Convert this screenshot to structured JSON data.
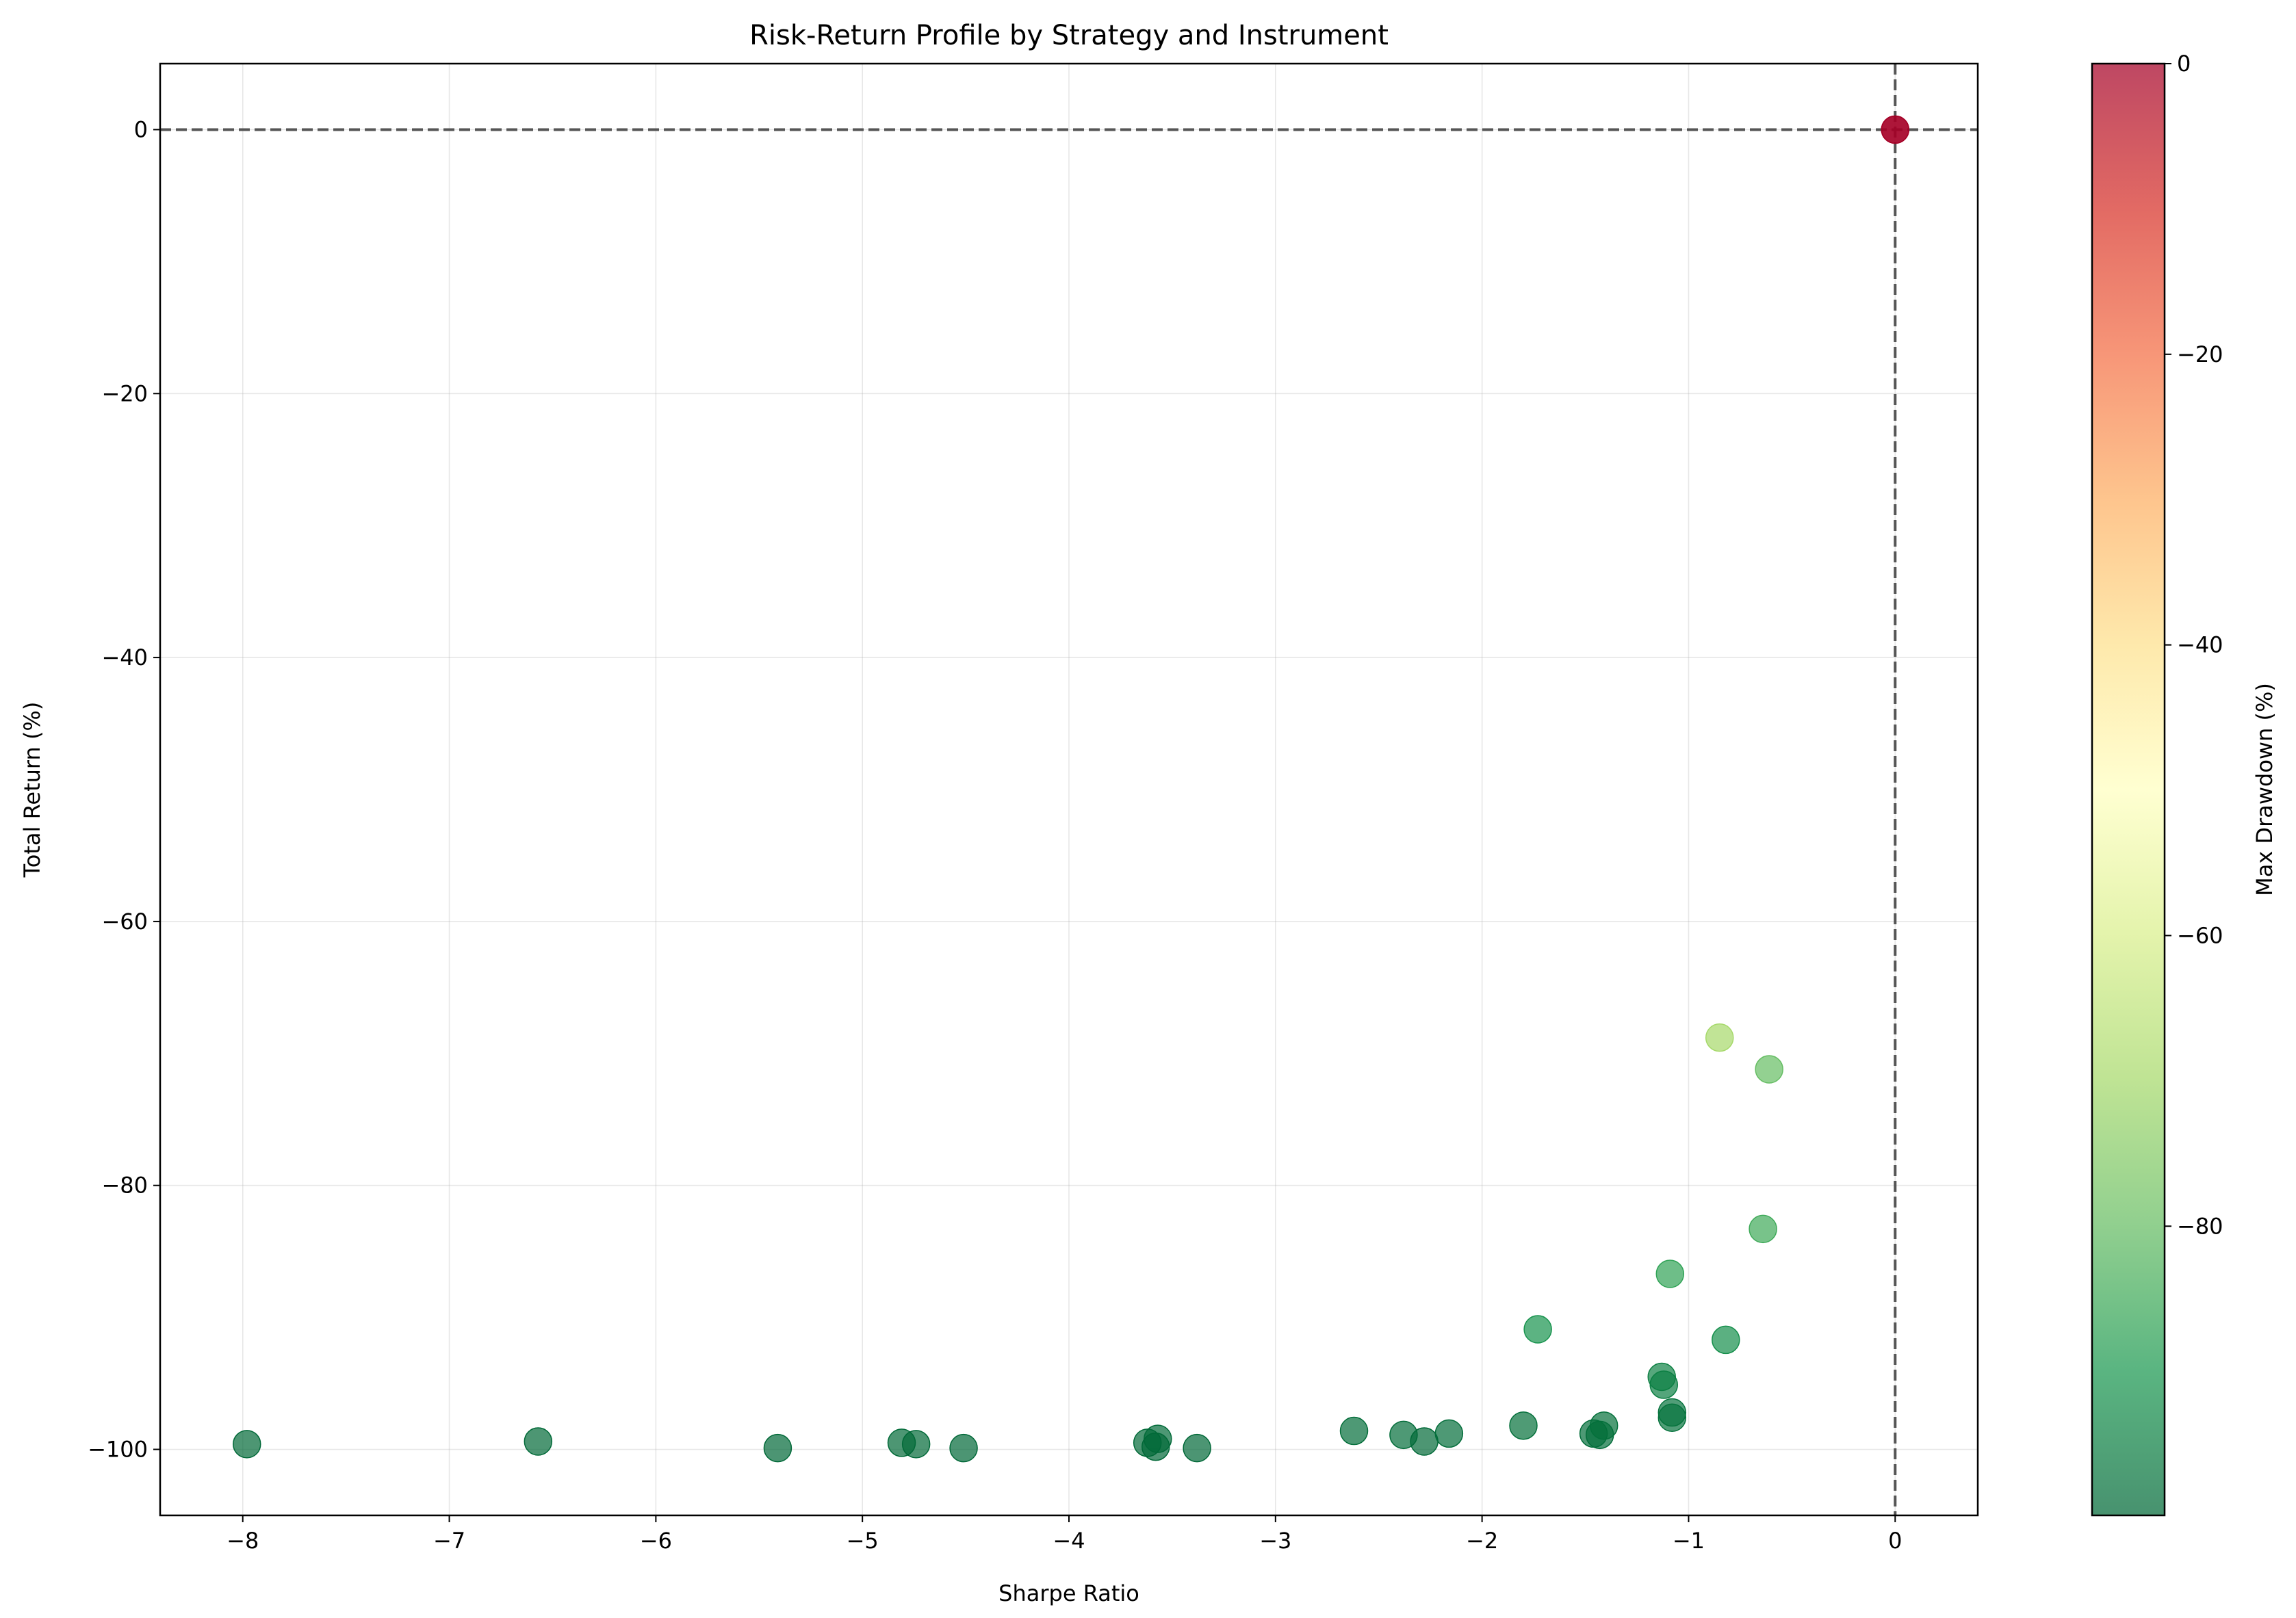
{
  "chart_data": {
    "type": "scatter",
    "title": "Risk-Return Profile by Strategy and Instrument",
    "xlabel": "Sharpe Ratio",
    "ylabel": "Total Return (%)",
    "xlim": [
      -8.4,
      0.4
    ],
    "ylim": [
      -105,
      5
    ],
    "xticks": [
      -8,
      -7,
      -6,
      -5,
      -4,
      -3,
      -2,
      -1,
      0
    ],
    "yticks": [
      0,
      -20,
      -40,
      -60,
      -80,
      -100
    ],
    "grid": true,
    "reference_lines": {
      "x": 0,
      "y": 0,
      "style": "dashed",
      "color": "#555555"
    },
    "colorbar": {
      "label": "Max Drawdown (%)",
      "colormap": "RdYlGn",
      "range": [
        -99.9,
        0
      ],
      "ticks": [
        0,
        -20,
        -40,
        -60,
        -80
      ],
      "stops": [
        "#006837",
        "#1a9850",
        "#66bd63",
        "#a6d96a",
        "#d9ef8b",
        "#ffffbf",
        "#fee08b",
        "#fdae61",
        "#f46d43",
        "#d73027",
        "#a50026"
      ]
    },
    "points": [
      {
        "x": -7.98,
        "y": -99.6,
        "c": -99.6
      },
      {
        "x": -6.57,
        "y": -99.4,
        "c": -99.4
      },
      {
        "x": -5.41,
        "y": -99.9,
        "c": -99.9
      },
      {
        "x": -4.81,
        "y": -99.5,
        "c": -99.5
      },
      {
        "x": -4.74,
        "y": -99.6,
        "c": -99.6
      },
      {
        "x": -4.51,
        "y": -99.9,
        "c": -99.9
      },
      {
        "x": -3.62,
        "y": -99.5,
        "c": -99.5
      },
      {
        "x": -3.57,
        "y": -99.2,
        "c": -99.2
      },
      {
        "x": -3.58,
        "y": -99.8,
        "c": -99.8
      },
      {
        "x": -3.38,
        "y": -99.9,
        "c": -99.9
      },
      {
        "x": -2.62,
        "y": -98.6,
        "c": -98.6
      },
      {
        "x": -2.38,
        "y": -98.9,
        "c": -98.9
      },
      {
        "x": -2.28,
        "y": -99.4,
        "c": -99.4
      },
      {
        "x": -2.16,
        "y": -98.8,
        "c": -98.8
      },
      {
        "x": -1.8,
        "y": -98.2,
        "c": -98.2
      },
      {
        "x": -1.73,
        "y": -90.9,
        "c": -91.0
      },
      {
        "x": -1.46,
        "y": -98.8,
        "c": -98.8
      },
      {
        "x": -1.43,
        "y": -98.9,
        "c": -98.9
      },
      {
        "x": -1.41,
        "y": -98.2,
        "c": -98.2
      },
      {
        "x": -1.13,
        "y": -94.5,
        "c": -94.6
      },
      {
        "x": -1.12,
        "y": -95.1,
        "c": -95.2
      },
      {
        "x": -1.08,
        "y": -97.2,
        "c": -97.3
      },
      {
        "x": -1.08,
        "y": -97.6,
        "c": -97.7
      },
      {
        "x": -1.09,
        "y": -86.7,
        "c": -87.0
      },
      {
        "x": -0.82,
        "y": -91.7,
        "c": -91.8
      },
      {
        "x": -0.85,
        "y": -68.8,
        "c": -70.0
      },
      {
        "x": -0.61,
        "y": -71.2,
        "c": -80.0
      },
      {
        "x": -0.64,
        "y": -83.3,
        "c": -85.0
      },
      {
        "x": 0.0,
        "y": 0.0,
        "c": 0.0
      },
      {
        "x": 0.0,
        "y": 0.0,
        "c": 0.0
      }
    ]
  }
}
